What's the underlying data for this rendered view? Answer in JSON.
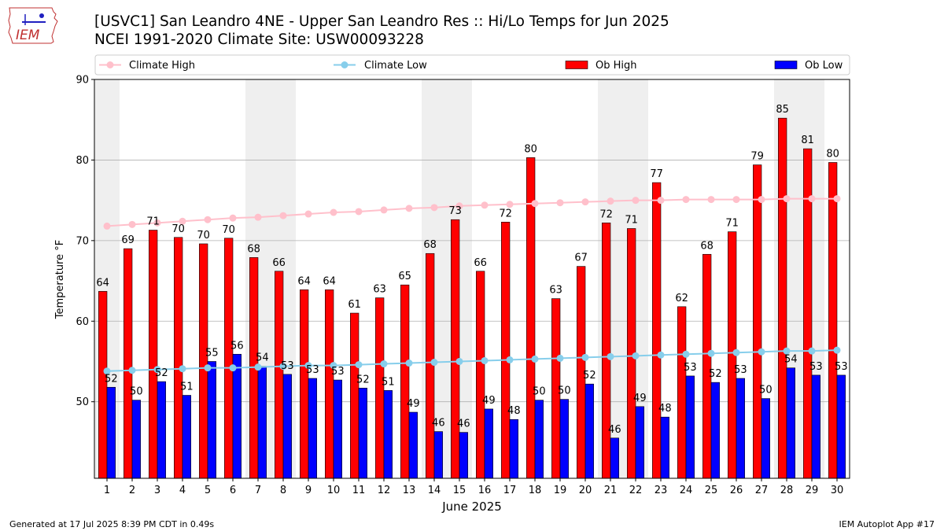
{
  "header": {
    "title_line1": "[USVC1] San Leandro 4NE - Upper San Leandro Res :: Hi/Lo Temps for Jun 2025",
    "title_line2": "NCEI 1991-2020 Climate Site: USW00093228",
    "logo_text": "IEM"
  },
  "footer": {
    "generated": "Generated at 17 Jul 2025 8:39 PM CDT in 0.49s",
    "app": "IEM Autoplot App #17"
  },
  "colors": {
    "ob_high": "#ff0000",
    "ob_low": "#0000ff",
    "climate_high": "#ffc0cb",
    "climate_low": "#87ceeb",
    "weekend_band": "#efefef",
    "grid": "#b0b0b0"
  },
  "chart_data": {
    "type": "bar",
    "xlabel": "June 2025",
    "ylabel": "Temperature °F",
    "ylim": [
      40.5,
      90
    ],
    "yticks": [
      50,
      60,
      70,
      80,
      90
    ],
    "grid": "horizontal",
    "legend_placement": "top",
    "categories": [
      "1",
      "2",
      "3",
      "4",
      "5",
      "6",
      "7",
      "8",
      "9",
      "10",
      "11",
      "12",
      "13",
      "14",
      "15",
      "16",
      "17",
      "18",
      "19",
      "20",
      "21",
      "22",
      "23",
      "24",
      "25",
      "26",
      "27",
      "28",
      "29",
      "30"
    ],
    "shaded_days": [
      1,
      7,
      8,
      14,
      15,
      21,
      22,
      28,
      29
    ],
    "series": [
      {
        "name": "Ob High",
        "kind": "bar",
        "values": [
          64,
          69,
          71,
          70,
          70,
          70,
          68,
          66,
          64,
          64,
          61,
          63,
          65,
          68,
          73,
          66,
          72,
          80,
          63,
          67,
          72,
          71,
          77,
          62,
          68,
          71,
          79,
          85,
          81,
          80
        ],
        "bar_heights": [
          63.7,
          69.0,
          71.3,
          70.4,
          69.6,
          70.3,
          67.9,
          66.2,
          63.9,
          63.9,
          61.0,
          62.9,
          64.5,
          68.4,
          72.6,
          66.2,
          72.3,
          80.3,
          62.8,
          66.8,
          72.2,
          71.5,
          77.2,
          61.8,
          68.3,
          71.1,
          79.4,
          85.2,
          81.4,
          79.7
        ]
      },
      {
        "name": "Ob Low",
        "kind": "bar",
        "values": [
          52,
          50,
          52,
          51,
          55,
          56,
          54,
          53,
          53,
          53,
          52,
          51,
          49,
          46,
          46,
          49,
          48,
          50,
          50,
          52,
          46,
          49,
          48,
          53,
          52,
          53,
          50,
          54,
          53,
          53
        ],
        "bar_heights": [
          51.8,
          50.2,
          52.5,
          50.8,
          55.0,
          55.9,
          54.4,
          53.4,
          52.9,
          52.7,
          51.7,
          51.4,
          48.7,
          46.3,
          46.2,
          49.1,
          47.8,
          50.2,
          50.3,
          52.2,
          45.5,
          49.4,
          48.1,
          53.2,
          52.4,
          52.9,
          50.4,
          54.2,
          53.3,
          53.3
        ]
      },
      {
        "name": "Climate High",
        "kind": "line",
        "values": [
          71.8,
          72.0,
          72.2,
          72.4,
          72.6,
          72.8,
          72.9,
          73.1,
          73.3,
          73.5,
          73.6,
          73.8,
          74.0,
          74.1,
          74.3,
          74.4,
          74.5,
          74.6,
          74.7,
          74.8,
          74.9,
          75.0,
          75.0,
          75.1,
          75.1,
          75.1,
          75.1,
          75.2,
          75.2,
          75.2
        ]
      },
      {
        "name": "Climate Low",
        "kind": "line",
        "values": [
          53.8,
          53.9,
          54.0,
          54.1,
          54.2,
          54.2,
          54.3,
          54.4,
          54.5,
          54.5,
          54.6,
          54.7,
          54.8,
          54.9,
          55.0,
          55.1,
          55.2,
          55.3,
          55.4,
          55.5,
          55.6,
          55.7,
          55.8,
          55.9,
          56.0,
          56.1,
          56.2,
          56.3,
          56.3,
          56.4
        ]
      }
    ]
  }
}
